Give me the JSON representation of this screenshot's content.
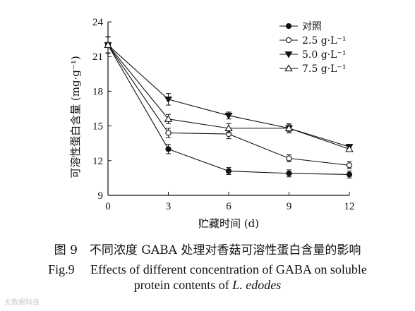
{
  "chart_data": {
    "type": "line",
    "x": [
      0,
      3,
      6,
      9,
      12
    ],
    "xlabel": "贮藏时间 (d)",
    "ylabel": "可溶性蛋白含量 (mg·g⁻¹)",
    "xlim": [
      0,
      12
    ],
    "ylim": [
      9,
      24
    ],
    "xticks": [
      0,
      3,
      6,
      9,
      12
    ],
    "yticks": [
      9,
      12,
      15,
      18,
      21,
      24
    ],
    "grid": false,
    "legend_position": "top-right",
    "series": [
      {
        "name": "对照",
        "marker": "filled-circle",
        "values": [
          22.0,
          13.0,
          11.1,
          10.9,
          10.8
        ],
        "errors": [
          0.7,
          0.4,
          0.3,
          0.3,
          0.3
        ]
      },
      {
        "name": "2.5 g·L⁻¹",
        "marker": "open-circle",
        "values": [
          22.0,
          14.4,
          14.3,
          12.2,
          11.6
        ],
        "errors": [
          0.7,
          0.4,
          0.4,
          0.3,
          0.3
        ]
      },
      {
        "name": "5.0 g·L⁻¹",
        "marker": "filled-triangle-down",
        "values": [
          22.0,
          17.3,
          15.9,
          14.8,
          13.2
        ],
        "errors": [
          0.7,
          0.5,
          0.3,
          0.4,
          0.2
        ]
      },
      {
        "name": "7.5 g·L⁻¹",
        "marker": "open-triangle-up",
        "values": [
          22.0,
          15.6,
          14.8,
          14.8,
          13.0
        ],
        "errors": [
          0.7,
          0.4,
          0.4,
          0.3,
          0.2
        ]
      }
    ]
  },
  "caption": {
    "cn": "图 9　不同浓度 GABA 处理对香菇可溶性蛋白含量的影响",
    "en_line1": "Fig.9　 Effects of different concentration of GABA on soluble",
    "en_line2_prefix": "protein contents of ",
    "en_line2_species": "L. edodes"
  },
  "watermark": "大数据科技"
}
